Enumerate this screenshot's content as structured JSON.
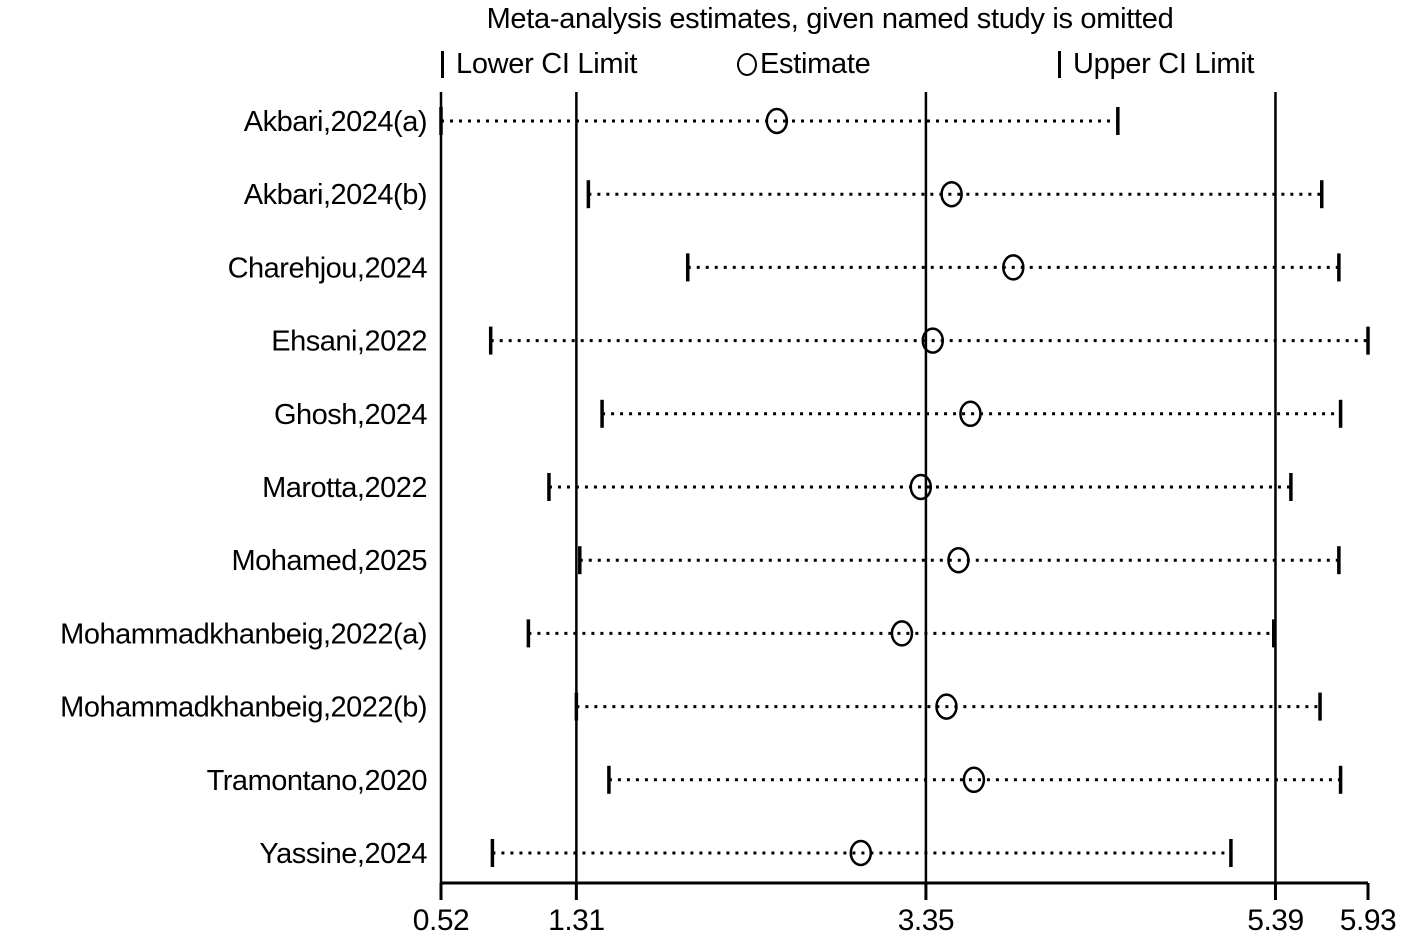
{
  "chart_data": {
    "type": "scatter",
    "variant": "leave-one-out-forest-plot",
    "title": "Meta-analysis estimates, given named study is omitted",
    "legend": [
      "Lower CI Limit",
      "Estimate",
      "Upper CI Limit"
    ],
    "legend_position": "top",
    "xlim": [
      0.52,
      5.93
    ],
    "x_ticks": [
      0.52,
      1.31,
      3.35,
      5.39,
      5.93
    ],
    "x_tick_labels": [
      "0.52",
      "1.31",
      "3.35",
      "5.39",
      "5.93"
    ],
    "reference_lines": [
      0.52,
      1.31,
      3.35,
      5.39
    ],
    "grid": "vertical-reference-lines-only",
    "overall_estimate": 3.35,
    "overall_lower_ci": 1.31,
    "overall_upper_ci": 5.39,
    "studies": [
      {
        "label": "Akbari,2024(a)",
        "lower": 0.52,
        "estimate": 2.48,
        "upper": 4.47
      },
      {
        "label": "Akbari,2024(b)",
        "lower": 1.38,
        "estimate": 3.5,
        "upper": 5.66
      },
      {
        "label": "Charehjou,2024",
        "lower": 1.96,
        "estimate": 3.86,
        "upper": 5.76
      },
      {
        "label": "Ehsani,2022",
        "lower": 0.81,
        "estimate": 3.39,
        "upper": 5.93
      },
      {
        "label": "Ghosh,2024",
        "lower": 1.46,
        "estimate": 3.61,
        "upper": 5.77
      },
      {
        "label": "Marotta,2022",
        "lower": 1.15,
        "estimate": 3.32,
        "upper": 5.48
      },
      {
        "label": "Mohamed,2025",
        "lower": 1.33,
        "estimate": 3.54,
        "upper": 5.76
      },
      {
        "label": "Mohammadkhanbeig,2022(a)",
        "lower": 1.03,
        "estimate": 3.21,
        "upper": 5.38
      },
      {
        "label": "Mohammadkhanbeig,2022(b)",
        "lower": 1.31,
        "estimate": 3.47,
        "upper": 5.65
      },
      {
        "label": "Tramontano,2020",
        "lower": 1.5,
        "estimate": 3.63,
        "upper": 5.77
      },
      {
        "label": "Yassine,2024",
        "lower": 0.82,
        "estimate": 2.97,
        "upper": 5.13
      }
    ],
    "colors": {
      "foreground": "#000000",
      "background": "#ffffff"
    }
  }
}
